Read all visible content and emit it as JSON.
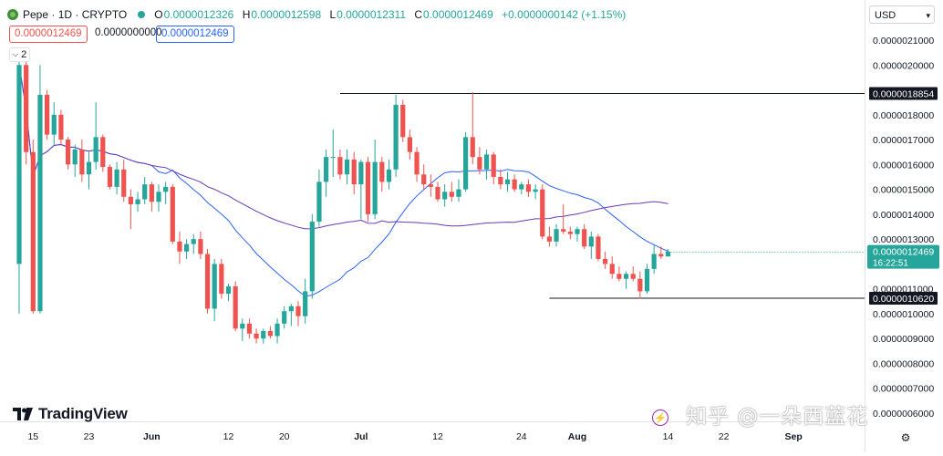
{
  "header": {
    "title": "Pepe · 1D · CRYPTO",
    "ohlc": [
      {
        "k": "O",
        "v": "0.0000012326"
      },
      {
        "k": "H",
        "v": "0.0000012598"
      },
      {
        "k": "L",
        "v": "0.0000012311"
      },
      {
        "k": "C",
        "v": "0.0000012469"
      },
      {
        "k": "",
        "v": "+0.0000000142 (+1.15%)"
      }
    ],
    "box_bid": "0.0000012469",
    "box_spread": "0.0000000000",
    "box_ask": "0.0000012469",
    "indicator_count": "2"
  },
  "currency": "USD",
  "brand": "TradingView",
  "watermark": "知乎 @一朵西蓝花",
  "colors": {
    "up": "#26a69a",
    "down": "#ef5350",
    "ma_fast": "#2962ff",
    "ma_slow": "#673ab7",
    "line": "#131722"
  },
  "chart_data": {
    "type": "candlestick",
    "y_axis": {
      "ticks": [
        "0.0000021000",
        "0.0000020000",
        "0.0000018000",
        "0.0000017000",
        "0.0000016000",
        "0.0000015000",
        "0.0000014000",
        "0.0000013000",
        "0.0000011000",
        "0.0000010000",
        "0.0000009000",
        "0.0000008000",
        "0.0000007000",
        "0.0000006000"
      ],
      "range": [
        6e-07,
        2.1e-06
      ]
    },
    "x_axis": {
      "ticks": [
        {
          "label": "15",
          "i": 2
        },
        {
          "label": "23",
          "i": 10
        },
        {
          "label": "Jun",
          "i": 19
        },
        {
          "label": "12",
          "i": 30
        },
        {
          "label": "20",
          "i": 38
        },
        {
          "label": "Jul",
          "i": 49
        },
        {
          "label": "12",
          "i": 60
        },
        {
          "label": "24",
          "i": 72
        },
        {
          "label": "Aug",
          "i": 80
        },
        {
          "label": "14",
          "i": 93
        },
        {
          "label": "22",
          "i": 101
        },
        {
          "label": "Sep",
          "i": 111
        }
      ]
    },
    "horizontal_lines": [
      {
        "value": 1.8854e-06,
        "label": "0.0000018854",
        "from_i": 46
      },
      {
        "value": 1.062e-06,
        "label": "0.0000010620",
        "from_i": 76
      }
    ],
    "current_price": {
      "value": 1.2469e-06,
      "label": "0.0000012469",
      "countdown": "16:22:51"
    },
    "candles": [
      {
        "o": 1.2,
        "h": 2.05,
        "l": 1.0,
        "c": 2.0
      },
      {
        "o": 2.0,
        "h": 2.05,
        "l": 1.6,
        "c": 1.65
      },
      {
        "o": 1.65,
        "h": 1.7,
        "l": 1.0,
        "c": 1.01
      },
      {
        "o": 1.01,
        "h": 2.0,
        "l": 1.0,
        "c": 1.88
      },
      {
        "o": 1.88,
        "h": 1.9,
        "l": 1.7,
        "c": 1.72
      },
      {
        "o": 1.72,
        "h": 1.85,
        "l": 1.68,
        "c": 1.8
      },
      {
        "o": 1.8,
        "h": 1.82,
        "l": 1.68,
        "c": 1.7
      },
      {
        "o": 1.7,
        "h": 1.71,
        "l": 1.58,
        "c": 1.6
      },
      {
        "o": 1.6,
        "h": 1.68,
        "l": 1.55,
        "c": 1.66
      },
      {
        "o": 1.66,
        "h": 1.7,
        "l": 1.53,
        "c": 1.56
      },
      {
        "o": 1.56,
        "h": 1.65,
        "l": 1.5,
        "c": 1.61
      },
      {
        "o": 1.61,
        "h": 1.85,
        "l": 1.58,
        "c": 1.71
      },
      {
        "o": 1.71,
        "h": 1.72,
        "l": 1.57,
        "c": 1.59
      },
      {
        "o": 1.59,
        "h": 1.6,
        "l": 1.5,
        "c": 1.51
      },
      {
        "o": 1.51,
        "h": 1.61,
        "l": 1.48,
        "c": 1.58
      },
      {
        "o": 1.58,
        "h": 1.62,
        "l": 1.45,
        "c": 1.47
      },
      {
        "o": 1.47,
        "h": 1.5,
        "l": 1.34,
        "c": 1.44
      },
      {
        "o": 1.44,
        "h": 1.49,
        "l": 1.41,
        "c": 1.46
      },
      {
        "o": 1.46,
        "h": 1.55,
        "l": 1.44,
        "c": 1.52
      },
      {
        "o": 1.52,
        "h": 1.53,
        "l": 1.41,
        "c": 1.45
      },
      {
        "o": 1.45,
        "h": 1.52,
        "l": 1.41,
        "c": 1.49
      },
      {
        "o": 1.49,
        "h": 1.53,
        "l": 1.44,
        "c": 1.51
      },
      {
        "o": 1.51,
        "h": 1.52,
        "l": 1.28,
        "c": 1.29
      },
      {
        "o": 1.29,
        "h": 1.33,
        "l": 1.2,
        "c": 1.25
      },
      {
        "o": 1.25,
        "h": 1.3,
        "l": 1.22,
        "c": 1.28
      },
      {
        "o": 1.28,
        "h": 1.32,
        "l": 1.24,
        "c": 1.3
      },
      {
        "o": 1.3,
        "h": 1.33,
        "l": 1.22,
        "c": 1.24
      },
      {
        "o": 1.24,
        "h": 1.26,
        "l": 1.0,
        "c": 1.02
      },
      {
        "o": 1.02,
        "h": 1.22,
        "l": 0.97,
        "c": 1.2
      },
      {
        "o": 1.2,
        "h": 1.22,
        "l": 1.06,
        "c": 1.08
      },
      {
        "o": 1.08,
        "h": 1.12,
        "l": 1.05,
        "c": 1.11
      },
      {
        "o": 1.11,
        "h": 1.13,
        "l": 0.93,
        "c": 0.94
      },
      {
        "o": 0.94,
        "h": 0.98,
        "l": 0.89,
        "c": 0.96
      },
      {
        "o": 0.96,
        "h": 0.98,
        "l": 0.9,
        "c": 0.92
      },
      {
        "o": 0.92,
        "h": 0.94,
        "l": 0.88,
        "c": 0.9
      },
      {
        "o": 0.9,
        "h": 0.94,
        "l": 0.88,
        "c": 0.93
      },
      {
        "o": 0.93,
        "h": 0.95,
        "l": 0.9,
        "c": 0.91
      },
      {
        "o": 0.91,
        "h": 0.98,
        "l": 0.88,
        "c": 0.96
      },
      {
        "o": 0.96,
        "h": 1.03,
        "l": 0.94,
        "c": 1.01
      },
      {
        "o": 1.01,
        "h": 1.04,
        "l": 0.95,
        "c": 1.03
      },
      {
        "o": 1.03,
        "h": 1.05,
        "l": 0.95,
        "c": 0.99
      },
      {
        "o": 0.99,
        "h": 1.14,
        "l": 0.96,
        "c": 1.09
      },
      {
        "o": 1.09,
        "h": 1.4,
        "l": 1.06,
        "c": 1.37
      },
      {
        "o": 1.37,
        "h": 1.58,
        "l": 1.35,
        "c": 1.53
      },
      {
        "o": 1.53,
        "h": 1.66,
        "l": 1.47,
        "c": 1.63
      },
      {
        "o": 1.63,
        "h": 1.74,
        "l": 1.55,
        "c": 1.63
      },
      {
        "o": 1.63,
        "h": 1.66,
        "l": 1.54,
        "c": 1.56
      },
      {
        "o": 1.56,
        "h": 1.66,
        "l": 1.52,
        "c": 1.62
      },
      {
        "o": 1.62,
        "h": 1.65,
        "l": 1.48,
        "c": 1.52
      },
      {
        "o": 1.52,
        "h": 1.62,
        "l": 1.38,
        "c": 1.61
      },
      {
        "o": 1.61,
        "h": 1.63,
        "l": 1.37,
        "c": 1.4
      },
      {
        "o": 1.4,
        "h": 1.7,
        "l": 1.38,
        "c": 1.61
      },
      {
        "o": 1.61,
        "h": 1.63,
        "l": 1.49,
        "c": 1.53
      },
      {
        "o": 1.53,
        "h": 1.62,
        "l": 1.5,
        "c": 1.58
      },
      {
        "o": 1.58,
        "h": 1.88,
        "l": 1.55,
        "c": 1.84
      },
      {
        "o": 1.84,
        "h": 1.86,
        "l": 1.69,
        "c": 1.71
      },
      {
        "o": 1.71,
        "h": 1.74,
        "l": 1.62,
        "c": 1.65
      },
      {
        "o": 1.65,
        "h": 1.67,
        "l": 1.53,
        "c": 1.56
      },
      {
        "o": 1.56,
        "h": 1.6,
        "l": 1.5,
        "c": 1.52
      },
      {
        "o": 1.52,
        "h": 1.56,
        "l": 1.47,
        "c": 1.51
      },
      {
        "o": 1.51,
        "h": 1.53,
        "l": 1.45,
        "c": 1.46
      },
      {
        "o": 1.46,
        "h": 1.52,
        "l": 1.43,
        "c": 1.49
      },
      {
        "o": 1.49,
        "h": 1.53,
        "l": 1.45,
        "c": 1.47
      },
      {
        "o": 1.47,
        "h": 1.54,
        "l": 1.45,
        "c": 1.5
      },
      {
        "o": 1.5,
        "h": 1.73,
        "l": 1.49,
        "c": 1.71
      },
      {
        "o": 1.71,
        "h": 1.89,
        "l": 1.6,
        "c": 1.63
      },
      {
        "o": 1.63,
        "h": 1.67,
        "l": 1.56,
        "c": 1.58
      },
      {
        "o": 1.58,
        "h": 1.66,
        "l": 1.54,
        "c": 1.64
      },
      {
        "o": 1.64,
        "h": 1.65,
        "l": 1.52,
        "c": 1.55
      },
      {
        "o": 1.55,
        "h": 1.58,
        "l": 1.5,
        "c": 1.52
      },
      {
        "o": 1.52,
        "h": 1.57,
        "l": 1.49,
        "c": 1.54
      },
      {
        "o": 1.54,
        "h": 1.56,
        "l": 1.49,
        "c": 1.5
      },
      {
        "o": 1.5,
        "h": 1.53,
        "l": 1.48,
        "c": 1.52
      },
      {
        "o": 1.52,
        "h": 1.54,
        "l": 1.47,
        "c": 1.49
      },
      {
        "o": 1.49,
        "h": 1.52,
        "l": 1.46,
        "c": 1.5
      },
      {
        "o": 1.5,
        "h": 1.52,
        "l": 1.3,
        "c": 1.31
      },
      {
        "o": 1.31,
        "h": 1.35,
        "l": 1.27,
        "c": 1.29
      },
      {
        "o": 1.29,
        "h": 1.36,
        "l": 1.27,
        "c": 1.34
      },
      {
        "o": 1.34,
        "h": 1.44,
        "l": 1.32,
        "c": 1.33
      },
      {
        "o": 1.33,
        "h": 1.35,
        "l": 1.3,
        "c": 1.32
      },
      {
        "o": 1.32,
        "h": 1.35,
        "l": 1.29,
        "c": 1.34
      },
      {
        "o": 1.34,
        "h": 1.36,
        "l": 1.26,
        "c": 1.27
      },
      {
        "o": 1.27,
        "h": 1.33,
        "l": 1.22,
        "c": 1.31
      },
      {
        "o": 1.31,
        "h": 1.32,
        "l": 1.21,
        "c": 1.22
      },
      {
        "o": 1.22,
        "h": 1.25,
        "l": 1.18,
        "c": 1.2
      },
      {
        "o": 1.2,
        "h": 1.23,
        "l": 1.14,
        "c": 1.16
      },
      {
        "o": 1.16,
        "h": 1.19,
        "l": 1.13,
        "c": 1.14
      },
      {
        "o": 1.14,
        "h": 1.17,
        "l": 1.1,
        "c": 1.16
      },
      {
        "o": 1.16,
        "h": 1.19,
        "l": 1.13,
        "c": 1.14
      },
      {
        "o": 1.14,
        "h": 1.17,
        "l": 1.06,
        "c": 1.09
      },
      {
        "o": 1.09,
        "h": 1.2,
        "l": 1.08,
        "c": 1.18
      },
      {
        "o": 1.18,
        "h": 1.28,
        "l": 1.16,
        "c": 1.24
      },
      {
        "o": 1.24,
        "h": 1.27,
        "l": 1.22,
        "c": 1.23
      },
      {
        "o": 1.23,
        "h": 1.26,
        "l": 1.23,
        "c": 1.25
      }
    ],
    "value_scale": 1e-06,
    "moving_averages": [
      {
        "color": "#2962ff",
        "period": 20
      },
      {
        "color": "#673ab7",
        "period": 50
      }
    ]
  }
}
